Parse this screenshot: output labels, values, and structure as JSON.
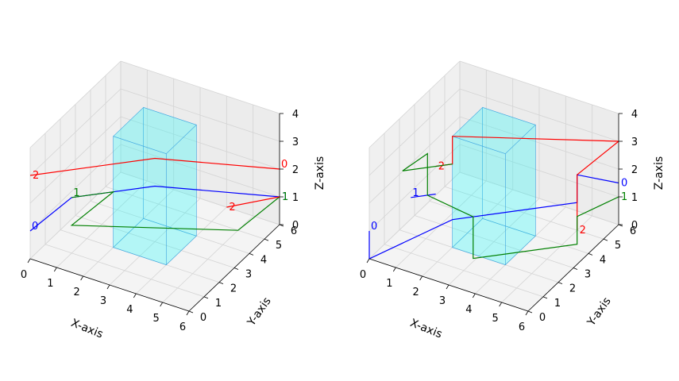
{
  "colors": {
    "pane_left": "#f0f0f0",
    "pane_back": "#ececec",
    "pane_floor": "#f4f4f4",
    "grid": "#d4d4d4",
    "box_fill": "#00ffff",
    "box_edge": "#3aa0e0"
  },
  "chart_data": [
    {
      "type": "line",
      "title": "",
      "xlabel": "X-axis",
      "ylabel": "Y-axis",
      "zlabel": "Z-axis",
      "xlim": [
        0,
        6
      ],
      "ylim": [
        0,
        6
      ],
      "zlim": [
        0,
        4
      ],
      "xticks": [
        "0",
        "1",
        "2",
        "3",
        "4",
        "5",
        "6"
      ],
      "yticks": [
        "0",
        "1",
        "2",
        "3",
        "4",
        "5",
        "6"
      ],
      "zticks": [
        "0",
        "1",
        "2",
        "3",
        "4"
      ],
      "grid": true,
      "obstacle": {
        "x": [
          2,
          4
        ],
        "y": [
          2,
          4
        ],
        "z": [
          0,
          4
        ]
      },
      "series": [
        {
          "color": "#0000ff",
          "points": [
            [
              0,
              0,
              1
            ],
            [
              1,
              1,
              2
            ],
            [
              2,
              2,
              2
            ],
            [
              3,
              3,
              2
            ],
            [
              6,
              6,
              1
            ]
          ],
          "start_label": "0",
          "end_label": "1"
        },
        {
          "color": "#ff0000",
          "points": [
            [
              6,
              6,
              2
            ],
            [
              3,
              3,
              3
            ],
            [
              0,
              0,
              3
            ]
          ],
          "start_label": "0",
          "end_label": "2"
        },
        {
          "color": "#008000",
          "points": [
            [
              1,
              1,
              2
            ],
            [
              2,
              2,
              2
            ],
            [
              1,
              1,
              1
            ],
            [
              5,
              5,
              0
            ],
            [
              6,
              6,
              1
            ]
          ],
          "start_label": "1",
          "end_label": "1"
        },
        {
          "color": "#ff0000",
          "points": [
            [
              6,
              6,
              1
            ],
            [
              4,
              6,
              0
            ]
          ],
          "start_label": "",
          "end_label": "2"
        }
      ]
    },
    {
      "type": "line",
      "title": "",
      "xlabel": "X-axis",
      "ylabel": "Y-axis",
      "zlabel": "Z-axis",
      "xlim": [
        0,
        6
      ],
      "ylim": [
        0,
        6
      ],
      "zlim": [
        0,
        4
      ],
      "xticks": [
        "0",
        "1",
        "2",
        "3",
        "4",
        "5",
        "6"
      ],
      "yticks": [
        "0",
        "1",
        "2",
        "3",
        "4",
        "5",
        "6"
      ],
      "zticks": [
        "0",
        "1",
        "2",
        "3",
        "4"
      ],
      "grid": true,
      "obstacle": {
        "x": [
          2,
          4
        ],
        "y": [
          2,
          4
        ],
        "z": [
          0,
          4
        ]
      },
      "series": [
        {
          "color": "#0000ff",
          "points": [
            [
              0,
              0,
              1
            ],
            [
              0,
              0,
              0
            ],
            [
              2,
              2,
              1
            ],
            [
              5,
              5,
              1
            ],
            [
              5,
              5,
              2
            ],
            [
              6,
              6,
              1.5
            ]
          ],
          "start_label": "0",
          "end_label": "0"
        },
        {
          "color": "#0000ff",
          "points": [
            [
              1,
              1,
              2
            ],
            [
              1.6,
              1.6,
              2
            ]
          ],
          "start_label": "1",
          "end_label": ""
        },
        {
          "color": "#ff0000",
          "points": [
            [
              6,
              6,
              3
            ],
            [
              2,
              2,
              4
            ],
            [
              2,
              2,
              3
            ],
            [
              1.6,
              1.6,
              3
            ]
          ],
          "start_label": "",
          "end_label": "2"
        },
        {
          "color": "#ff0000",
          "points": [
            [
              6,
              6,
              3
            ],
            [
              5,
              5,
              2
            ],
            [
              5,
              5,
              0
            ]
          ],
          "start_label": "",
          "end_label": "2"
        },
        {
          "color": "#008000",
          "points": [
            [
              2,
              2,
              3
            ],
            [
              0.8,
              0.8,
              3
            ],
            [
              1.4,
              1.4,
              3.5
            ],
            [
              1.4,
              1.4,
              2
            ],
            [
              2.5,
              2.5,
              1
            ],
            [
              2.5,
              2.5,
              -0.5
            ],
            [
              5,
              5,
              -0.5
            ],
            [
              5,
              5,
              0.5
            ],
            [
              6,
              6,
              1
            ]
          ],
          "start_label": "",
          "end_label": "1"
        }
      ]
    }
  ]
}
